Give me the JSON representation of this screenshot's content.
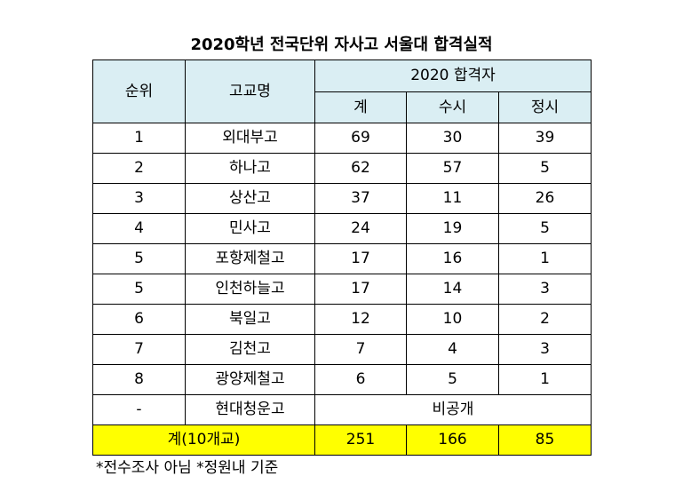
{
  "title": "2020학년 전국단위 자사고 서울대 합격실적",
  "headers": {
    "rank": "순위",
    "school": "고교명",
    "group": "2020 합격자",
    "total": "계",
    "susi": "수시",
    "jeongsi": "정시"
  },
  "rows": [
    {
      "rank": "1",
      "school": "외대부고",
      "total": "69",
      "susi": "30",
      "jeongsi": "39"
    },
    {
      "rank": "2",
      "school": "하나고",
      "total": "62",
      "susi": "57",
      "jeongsi": "5"
    },
    {
      "rank": "3",
      "school": "상산고",
      "total": "37",
      "susi": "11",
      "jeongsi": "26"
    },
    {
      "rank": "4",
      "school": "민사고",
      "total": "24",
      "susi": "19",
      "jeongsi": "5"
    },
    {
      "rank": "5",
      "school": "포항제철고",
      "total": "17",
      "susi": "16",
      "jeongsi": "1"
    },
    {
      "rank": "5",
      "school": "인천하늘고",
      "total": "17",
      "susi": "14",
      "jeongsi": "3"
    },
    {
      "rank": "6",
      "school": "북일고",
      "total": "12",
      "susi": "10",
      "jeongsi": "2"
    },
    {
      "rank": "7",
      "school": "김천고",
      "total": "7",
      "susi": "4",
      "jeongsi": "3"
    },
    {
      "rank": "8",
      "school": "광양제철고",
      "total": "6",
      "susi": "5",
      "jeongsi": "1"
    }
  ],
  "undisclosed": {
    "rank": "-",
    "school": "현대청운고",
    "value": "비공개"
  },
  "totals": {
    "label": "계(10개교)",
    "total": "251",
    "susi": "166",
    "jeongsi": "85"
  },
  "note": "*전수조사 아님 *정원내 기준"
}
